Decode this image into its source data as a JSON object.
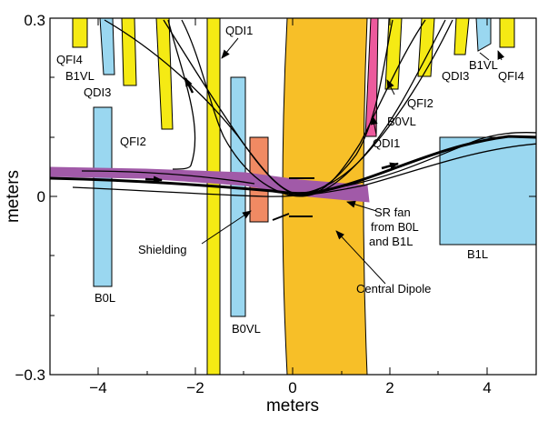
{
  "axes": {
    "xlabel": "meters",
    "ylabel": "meters",
    "xlim": [
      -5,
      5
    ],
    "ylim": [
      -0.3,
      0.3
    ],
    "x_ticks": [
      {
        "value": -4,
        "label": "−4"
      },
      {
        "value": -2,
        "label": "−2"
      },
      {
        "value": 0,
        "label": "0"
      },
      {
        "value": 2,
        "label": "2"
      },
      {
        "value": 4,
        "label": "4"
      }
    ],
    "y_ticks": [
      {
        "value": -0.3,
        "label": "−0.3"
      },
      {
        "value": 0,
        "label": "0"
      },
      {
        "value": 0.3,
        "label": "0.3"
      }
    ]
  },
  "colors": {
    "quadrupole_yellow": "#f5ea14",
    "bend_blue": "#9ad7f0",
    "shielding_salmon": "#f08a63",
    "dipole_orange": "#f7bf28",
    "qdi1_pink": "#ec5a9d",
    "sr_fan_purple": "#a15aa8"
  },
  "element_labels": {
    "qfi4_left": "QFI4",
    "b1vl_left": "B1VL",
    "qdi3_left": "QDI3",
    "qfi2_left": "QFI2",
    "qdi1_top": "QDI1",
    "b0l": "B0L",
    "shielding": "Shielding",
    "b0vl_bottom": "B0VL",
    "central_dipole": "Central Dipole",
    "sr_fan_line1": "SR fan",
    "sr_fan_line2": "from B0L",
    "sr_fan_line3": "and B1L",
    "b1l": "B1L",
    "qfi2_right": "QFI2",
    "b0vl_right": "B0VL",
    "qdi1_right": "QDI1",
    "qdi3_right": "QDI3",
    "b1vl_right": "B1VL",
    "qfi4_right": "QFI4"
  }
}
